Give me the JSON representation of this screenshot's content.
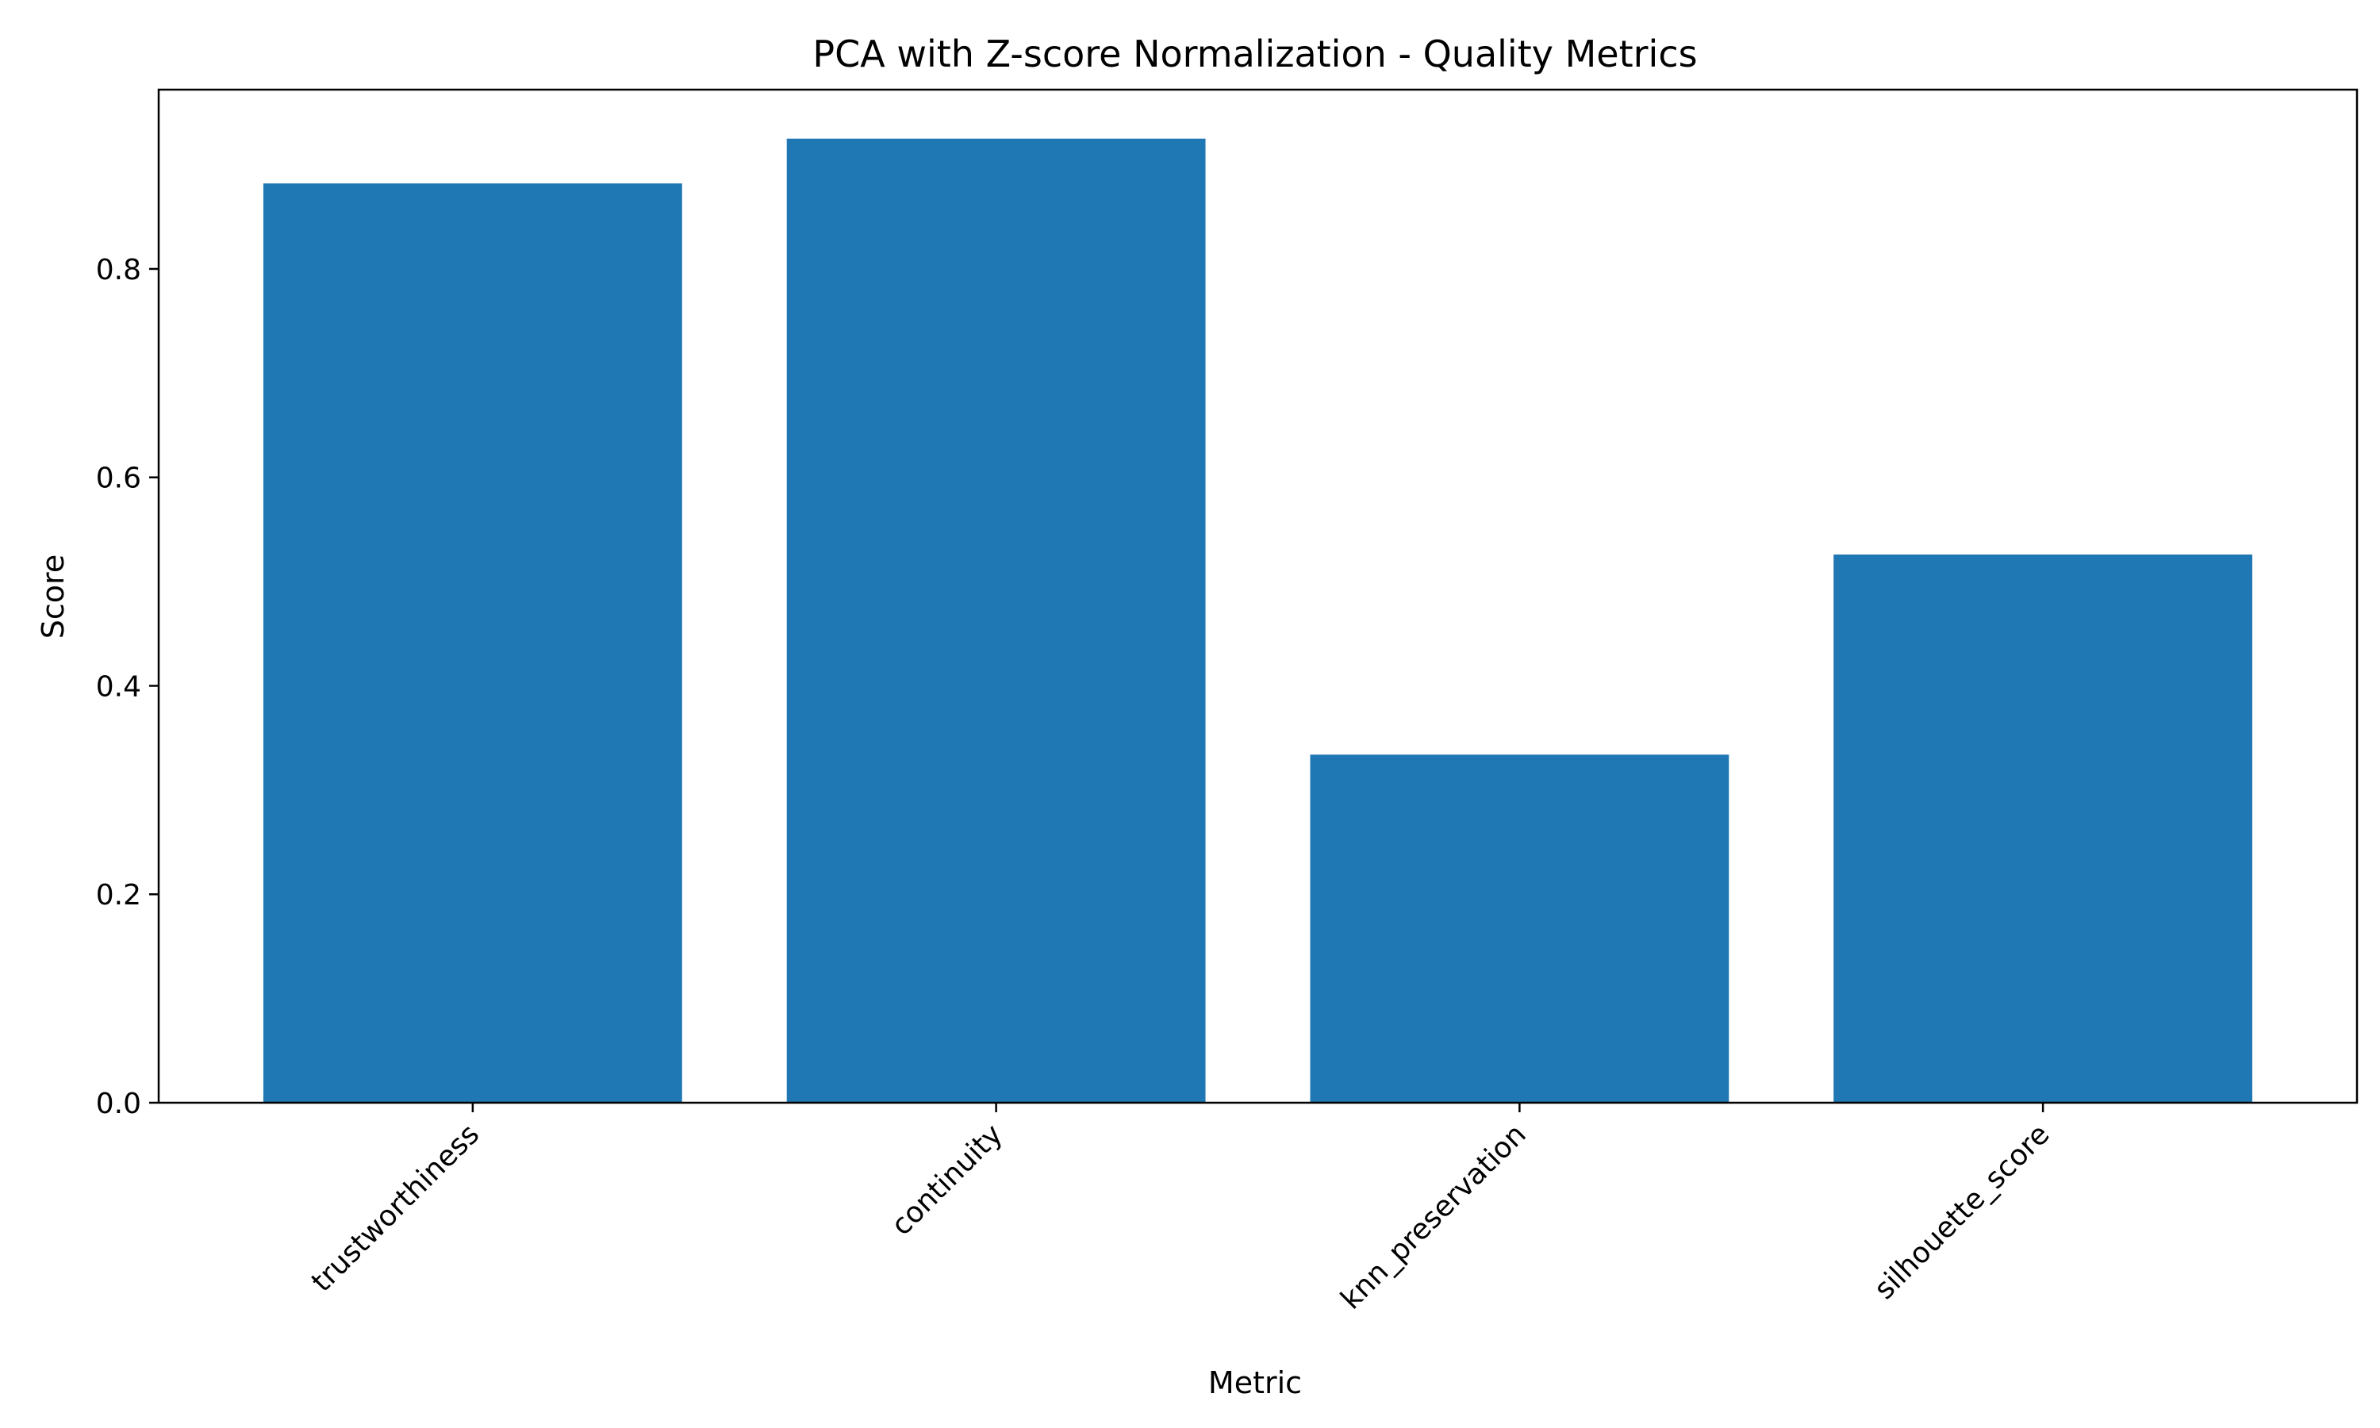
{
  "chart_data": {
    "type": "bar",
    "title": "PCA with Z-score Normalization - Quality Metrics",
    "xlabel": "Metric",
    "ylabel": "Score",
    "categories": [
      "trustworthiness",
      "continuity",
      "knn_preservation",
      "silhouette_score"
    ],
    "values": [
      0.882,
      0.925,
      0.334,
      0.526
    ],
    "ylim": [
      0,
      0.972
    ],
    "yticks": [
      "0.0",
      "0.2",
      "0.4",
      "0.6",
      "0.8"
    ],
    "grid": false,
    "bar_color": "#1f77b4"
  }
}
